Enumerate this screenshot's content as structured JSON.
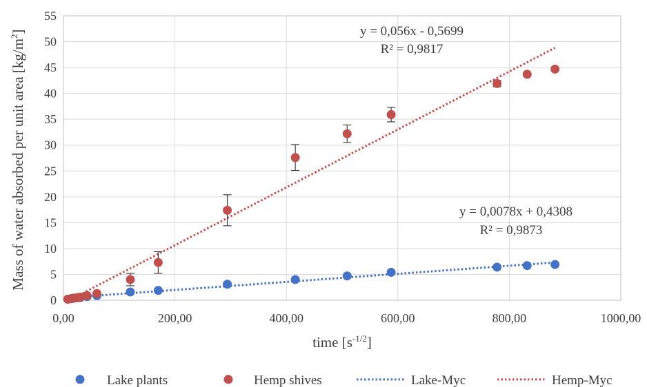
{
  "chart_data": {
    "type": "scatter",
    "xlabel": "time [s",
    "xlabel_sup": "-1/2",
    "xlabel_end": "]",
    "ylabel": "Mass of water absorbed per unit area [kg/m",
    "ylabel_sup": "2",
    "ylabel_end": "]",
    "xlim": [
      0,
      1000
    ],
    "ylim": [
      0,
      55
    ],
    "x_ticks": [
      "0,00",
      "200,00",
      "400,00",
      "600,00",
      "800,00",
      "1000,00"
    ],
    "x_tick_values": [
      0,
      200,
      400,
      600,
      800,
      1000
    ],
    "y_ticks": [
      "0",
      "5",
      "10",
      "15",
      "20",
      "25",
      "30",
      "35",
      "40",
      "45",
      "50",
      "55"
    ],
    "y_tick_values": [
      0,
      5,
      10,
      15,
      20,
      25,
      30,
      35,
      40,
      45,
      50,
      55
    ],
    "grid": "vertical and horizontal",
    "legend_position": "bottom",
    "series": [
      {
        "name": "Lake plants",
        "color": "#4472C4",
        "x": [
          7.7,
          13.4,
          17.3,
          24.5,
          30,
          42.4,
          60,
          120,
          170,
          294,
          416,
          509,
          588,
          778,
          832,
          882
        ],
        "y": [
          0.2,
          0.3,
          0.35,
          0.45,
          0.5,
          0.7,
          0.9,
          1.6,
          1.9,
          3.1,
          4.0,
          4.7,
          5.4,
          6.4,
          6.7,
          6.9
        ]
      },
      {
        "name": "Hemp shives",
        "color": "#C0504D",
        "x": [
          7.7,
          13.4,
          17.3,
          24.5,
          30,
          42.4,
          60,
          120,
          170,
          294,
          416,
          509,
          588,
          778,
          832,
          882
        ],
        "y": [
          0.2,
          0.3,
          0.4,
          0.5,
          0.6,
          0.9,
          1.3,
          4.0,
          7.3,
          17.4,
          27.6,
          32.2,
          35.9,
          41.9,
          43.7,
          44.7
        ],
        "error": [
          0,
          0,
          0,
          0,
          0,
          0,
          0,
          1.2,
          2.1,
          3.0,
          2.5,
          1.7,
          1.4,
          0.6,
          0,
          0
        ]
      }
    ],
    "trendlines": [
      {
        "name": "Lake-Myc",
        "color": "#4472C4",
        "slope": 0.0078,
        "intercept": 0.4308,
        "x_range": [
          7.7,
          882
        ]
      },
      {
        "name": "Hemp-Myc",
        "color": "#C0504D",
        "slope": 0.056,
        "intercept": -0.5699,
        "x_range": [
          7.7,
          882
        ]
      }
    ],
    "annotations": [
      {
        "line1": "y = 0,056x - 0,5699",
        "line2": "R² = 0,9817"
      },
      {
        "line1": "y = 0,0078x + 0,4308",
        "line2": "R² = 0,9873"
      }
    ]
  }
}
